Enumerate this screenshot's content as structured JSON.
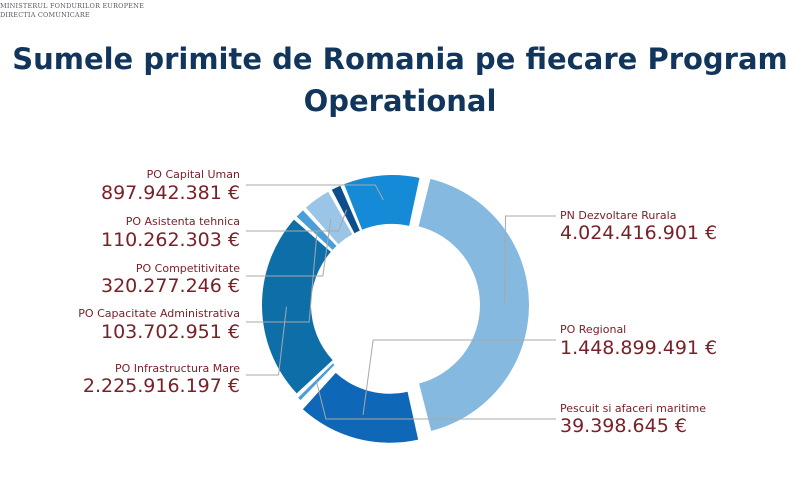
{
  "logo": {
    "line1": "MINISTERUL FONDURILOR EUROPENE",
    "line2": "DIRECTIA COMUNICARE"
  },
  "chart_data": {
    "type": "pie",
    "title_lines": [
      "Sumele primite de Romania pe fiecare Program",
      "Operational"
    ],
    "donut": true,
    "currency": "€",
    "slices": [
      {
        "id": "pn-dezvoltare-rurala",
        "label": "PN Dezvoltare Rurala",
        "value": 4024416901,
        "value_text": "4.024.416.901 €",
        "color": "#85b9df"
      },
      {
        "id": "po-regional",
        "label": "PO Regional",
        "value": 1448899491,
        "value_text": "1.448.899.491 €",
        "color": "#0f67b8"
      },
      {
        "id": "pescuit-si-afaceri-maritime",
        "label": "Pescuit si afaceri maritime",
        "value": 39398645,
        "value_text": "39.398.645 €",
        "color": "#4a9ed9"
      },
      {
        "id": "po-infrastructura-mare",
        "label": "PO Infrastructura Mare",
        "value": 2225916197,
        "value_text": "2.225.916.197 €",
        "color": "#0e6ea8"
      },
      {
        "id": "po-capacitate-administrativa",
        "label": "PO Capacitate Administrativa",
        "value": 103702951,
        "value_text": "103.702.951 €",
        "color": "#4a9ed9"
      },
      {
        "id": "po-competitivitate",
        "label": "PO Competitivitate",
        "value": 320277246,
        "value_text": "320.277.246 €",
        "color": "#9ac5e6"
      },
      {
        "id": "po-asistenta-tehnica",
        "label": "PO Asistenta tehnica",
        "value": 110262303,
        "value_text": "110.262.303 €",
        "color": "#0c4d8c"
      },
      {
        "id": "po-capital-uman",
        "label": "PO Capital Uman",
        "value": 897942381,
        "value_text": "897.942.381 €",
        "color": "#158ad6"
      }
    ]
  }
}
